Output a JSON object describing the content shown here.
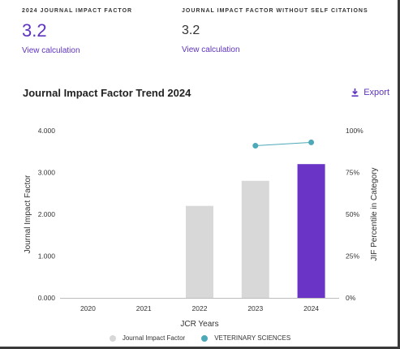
{
  "metrics": {
    "jif": {
      "label": "2024 JOURNAL IMPACT FACTOR",
      "value": "3.2",
      "link": "View calculation"
    },
    "jif_no_self": {
      "label": "JOURNAL IMPACT FACTOR WITHOUT SELF CITATIONS",
      "value": "3.2",
      "link": "View calculation"
    }
  },
  "trend": {
    "title": "Journal Impact Factor Trend 2024",
    "export_label": "Export",
    "export_icon": "download-icon"
  },
  "colors": {
    "accent": "#5e33bf",
    "bar_gray": "#d8d8d8",
    "bar_current": "#6a34c6",
    "line": "#4da9b8"
  },
  "chart_data": {
    "type": "bar",
    "xlabel": "JCR Years",
    "ylabel": "Journal Impact Factor",
    "y2label": "JIF Percentile in Category",
    "categories": [
      "2020",
      "2021",
      "2022",
      "2023",
      "2024"
    ],
    "ylim": [
      0,
      4
    ],
    "yticks": [
      "4.000",
      "3.000",
      "2.000",
      "1.000",
      "0.000"
    ],
    "y2lim": [
      0,
      100
    ],
    "y2ticks": [
      "100%",
      "75%",
      "50%",
      "25%",
      "0%"
    ],
    "grid": false,
    "legend_position": "bottom",
    "series": [
      {
        "name": "Journal Impact Factor",
        "type": "bar",
        "axis": "left",
        "values": [
          null,
          null,
          2.2,
          2.8,
          3.2
        ],
        "highlight_index": 4
      },
      {
        "name": "VETERINARY SCIENCES",
        "type": "line",
        "axis": "right",
        "values": [
          null,
          null,
          null,
          91,
          93
        ]
      }
    ]
  }
}
